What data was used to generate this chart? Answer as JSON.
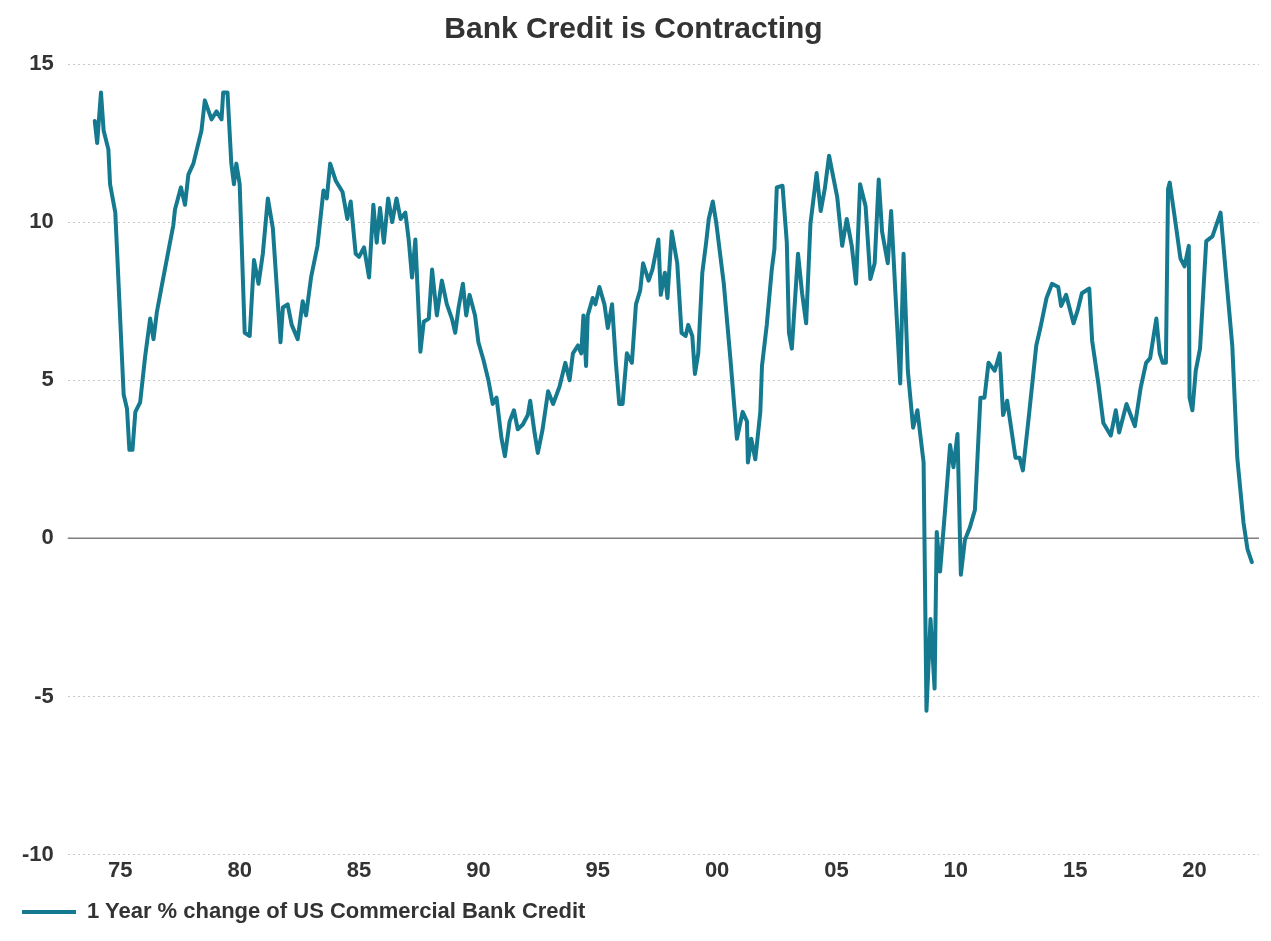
{
  "chart_data": {
    "type": "line",
    "title": "Bank Credit is Contracting",
    "legend": "bottom left",
    "grid": "y",
    "marker": "none",
    "line_style": "solid",
    "xlim": [
      1972.8,
      2022.7
    ],
    "ylim": [
      -10,
      15
    ],
    "yticks": [
      -10,
      -5,
      0,
      5,
      10,
      15
    ],
    "xticks": [
      {
        "value": 1975,
        "label": "75"
      },
      {
        "value": 1980,
        "label": "80"
      },
      {
        "value": 1985,
        "label": "85"
      },
      {
        "value": 1990,
        "label": "90"
      },
      {
        "value": 1995,
        "label": "95"
      },
      {
        "value": 2000,
        "label": "00"
      },
      {
        "value": 2005,
        "label": "05"
      },
      {
        "value": 2010,
        "label": "10"
      },
      {
        "value": 2015,
        "label": "15"
      },
      {
        "value": 2020,
        "label": "20"
      }
    ],
    "ref_lines": [
      {
        "axis": "y",
        "value": 0,
        "color": "#7f7f7f"
      }
    ],
    "series": [
      {
        "name": "1 Year % change of US Commercial Bank Credit",
        "color": "#157a90",
        "x": [
          1973.93,
          1974.03,
          1974.19,
          1974.3,
          1974.5,
          1974.57,
          1974.79,
          1975.14,
          1975.28,
          1975.38,
          1975.51,
          1975.63,
          1975.83,
          1976.04,
          1976.25,
          1976.39,
          1976.53,
          1976.74,
          1977.08,
          1977.22,
          1977.29,
          1977.54,
          1977.71,
          1977.85,
          1978.06,
          1978.4,
          1978.54,
          1978.82,
          1979.03,
          1979.24,
          1979.31,
          1979.49,
          1979.65,
          1979.76,
          1979.86,
          1980.0,
          1980.21,
          1980.42,
          1980.6,
          1980.79,
          1980.97,
          1981.18,
          1981.39,
          1981.71,
          1981.81,
          1982.01,
          1982.18,
          1982.43,
          1982.64,
          1982.78,
          1982.99,
          1983.26,
          1983.51,
          1983.65,
          1983.79,
          1984.03,
          1984.31,
          1984.51,
          1984.65,
          1984.86,
          1985.0,
          1985.21,
          1985.42,
          1985.6,
          1985.74,
          1985.88,
          1986.04,
          1986.22,
          1986.39,
          1986.57,
          1986.74,
          1986.94,
          1987.08,
          1987.22,
          1987.36,
          1987.57,
          1987.71,
          1987.92,
          1988.06,
          1988.26,
          1988.47,
          1988.68,
          1988.89,
          1989.03,
          1989.17,
          1989.35,
          1989.49,
          1989.63,
          1989.86,
          1990.0,
          1990.21,
          1990.42,
          1990.6,
          1990.76,
          1990.97,
          1991.11,
          1991.31,
          1991.49,
          1991.65,
          1991.86,
          1992.07,
          1992.17,
          1992.35,
          1992.49,
          1992.69,
          1992.92,
          1993.13,
          1993.4,
          1993.64,
          1993.82,
          1993.96,
          1994.17,
          1994.31,
          1994.4,
          1994.51,
          1994.58,
          1994.79,
          1994.9,
          1995.07,
          1995.28,
          1995.42,
          1995.6,
          1995.76,
          1995.9,
          1996.04,
          1996.22,
          1996.43,
          1996.6,
          1996.78,
          1996.9,
          1997.13,
          1997.29,
          1997.54,
          1997.64,
          1997.81,
          1997.92,
          1998.1,
          1998.33,
          1998.51,
          1998.68,
          1998.79,
          1998.96,
          1999.07,
          1999.21,
          1999.38,
          1999.54,
          1999.65,
          1999.82,
          1999.96,
          2000.28,
          2000.56,
          2000.83,
          2001.07,
          2001.25,
          2001.29,
          2001.43,
          2001.6,
          2001.81,
          2001.88,
          2002.08,
          2002.29,
          2002.4,
          2002.5,
          2002.74,
          2002.92,
          2003.01,
          2003.13,
          2003.39,
          2003.56,
          2003.73,
          2003.91,
          2004.17,
          2004.34,
          2004.51,
          2004.69,
          2004.86,
          2005.03,
          2005.24,
          2005.43,
          2005.64,
          2005.82,
          2005.99,
          2006.22,
          2006.42,
          2006.6,
          2006.77,
          2006.91,
          2007.15,
          2007.29,
          2007.47,
          2007.67,
          2007.81,
          2007.99,
          2008.21,
          2008.39,
          2008.65,
          2008.77,
          2008.94,
          2009.11,
          2009.2,
          2009.34,
          2009.55,
          2009.76,
          2009.9,
          2010.07,
          2010.21,
          2010.38,
          2010.59,
          2010.8,
          2011.03,
          2011.2,
          2011.37,
          2011.63,
          2011.84,
          2011.98,
          2012.15,
          2012.5,
          2012.67,
          2012.81,
          2013.05,
          2013.37,
          2013.54,
          2013.8,
          2014.03,
          2014.29,
          2014.41,
          2014.62,
          2014.93,
          2015.1,
          2015.28,
          2015.59,
          2015.71,
          2015.97,
          2016.18,
          2016.49,
          2016.7,
          2016.84,
          2017.15,
          2017.5,
          2017.74,
          2017.97,
          2018.14,
          2018.4,
          2018.54,
          2018.67,
          2018.8,
          2018.89,
          2018.96,
          2019.18,
          2019.41,
          2019.58,
          2019.76,
          2019.79,
          2019.91,
          2020.05,
          2020.23,
          2020.49,
          2020.75,
          2021.09,
          2021.35,
          2021.58,
          2021.79,
          2022.05,
          2022.22,
          2022.4
        ],
        "values": [
          13.2,
          12.5,
          14.1,
          12.9,
          12.3,
          11.2,
          10.3,
          4.55,
          4.1,
          2.8,
          2.8,
          4.0,
          4.3,
          5.75,
          6.95,
          6.3,
          7.15,
          8.0,
          9.35,
          9.9,
          10.4,
          11.1,
          10.55,
          11.5,
          11.85,
          12.9,
          13.85,
          13.25,
          13.5,
          13.25,
          14.1,
          14.1,
          11.85,
          11.2,
          11.85,
          11.2,
          6.5,
          6.4,
          8.8,
          8.05,
          9.0,
          10.75,
          9.8,
          6.2,
          7.3,
          7.4,
          6.75,
          6.3,
          7.5,
          7.05,
          8.25,
          9.25,
          11.0,
          10.75,
          11.85,
          11.3,
          10.95,
          10.1,
          10.65,
          9.0,
          8.9,
          9.2,
          8.25,
          10.55,
          9.35,
          10.45,
          9.35,
          10.75,
          10.0,
          10.75,
          10.1,
          10.3,
          9.45,
          8.25,
          9.45,
          5.9,
          6.85,
          6.95,
          8.5,
          7.05,
          8.15,
          7.4,
          6.95,
          6.5,
          7.3,
          8.05,
          7.05,
          7.7,
          7.05,
          6.2,
          5.65,
          5.0,
          4.25,
          4.45,
          3.15,
          2.6,
          3.7,
          4.05,
          3.45,
          3.6,
          3.9,
          4.35,
          3.35,
          2.7,
          3.45,
          4.65,
          4.25,
          4.8,
          5.55,
          5.0,
          5.85,
          6.1,
          5.85,
          7.05,
          5.45,
          7.05,
          7.6,
          7.4,
          7.95,
          7.4,
          6.65,
          7.4,
          5.55,
          4.25,
          4.25,
          5.85,
          5.55,
          7.4,
          7.85,
          8.7,
          8.15,
          8.5,
          9.45,
          7.7,
          8.4,
          7.6,
          9.7,
          8.7,
          6.5,
          6.4,
          6.75,
          6.4,
          5.2,
          5.85,
          8.4,
          9.35,
          10.1,
          10.65,
          10.0,
          8.05,
          5.65,
          3.15,
          4.0,
          3.7,
          2.4,
          3.15,
          2.5,
          4.0,
          5.45,
          6.75,
          8.5,
          9.15,
          11.1,
          11.15,
          9.35,
          6.5,
          6.0,
          9.0,
          7.75,
          6.8,
          9.95,
          11.55,
          10.35,
          11.05,
          12.1,
          11.45,
          10.8,
          9.25,
          10.1,
          9.25,
          8.05,
          11.2,
          10.5,
          8.2,
          8.7,
          11.35,
          9.7,
          8.7,
          10.35,
          7.75,
          4.9,
          9.0,
          5.3,
          3.5,
          4.05,
          2.4,
          -5.45,
          -2.55,
          -4.75,
          0.2,
          -1.05,
          0.9,
          2.95,
          2.25,
          3.3,
          -1.15,
          -0.05,
          0.35,
          0.9,
          4.45,
          4.45,
          5.55,
          5.3,
          5.85,
          3.9,
          4.35,
          2.55,
          2.55,
          2.15,
          3.8,
          6.1,
          6.65,
          7.6,
          8.05,
          7.95,
          7.35,
          7.7,
          6.8,
          7.2,
          7.75,
          7.9,
          6.25,
          4.9,
          3.65,
          3.25,
          4.05,
          3.35,
          4.25,
          3.55,
          4.75,
          5.55,
          5.7,
          6.95,
          5.85,
          5.55,
          5.55,
          11.05,
          11.25,
          10.1,
          8.85,
          8.6,
          9.25,
          4.45,
          4.05,
          5.3,
          6.0,
          9.4,
          9.55,
          10.3,
          8.05,
          6.1,
          2.55,
          0.5,
          -0.35,
          -0.75
        ]
      }
    ]
  }
}
